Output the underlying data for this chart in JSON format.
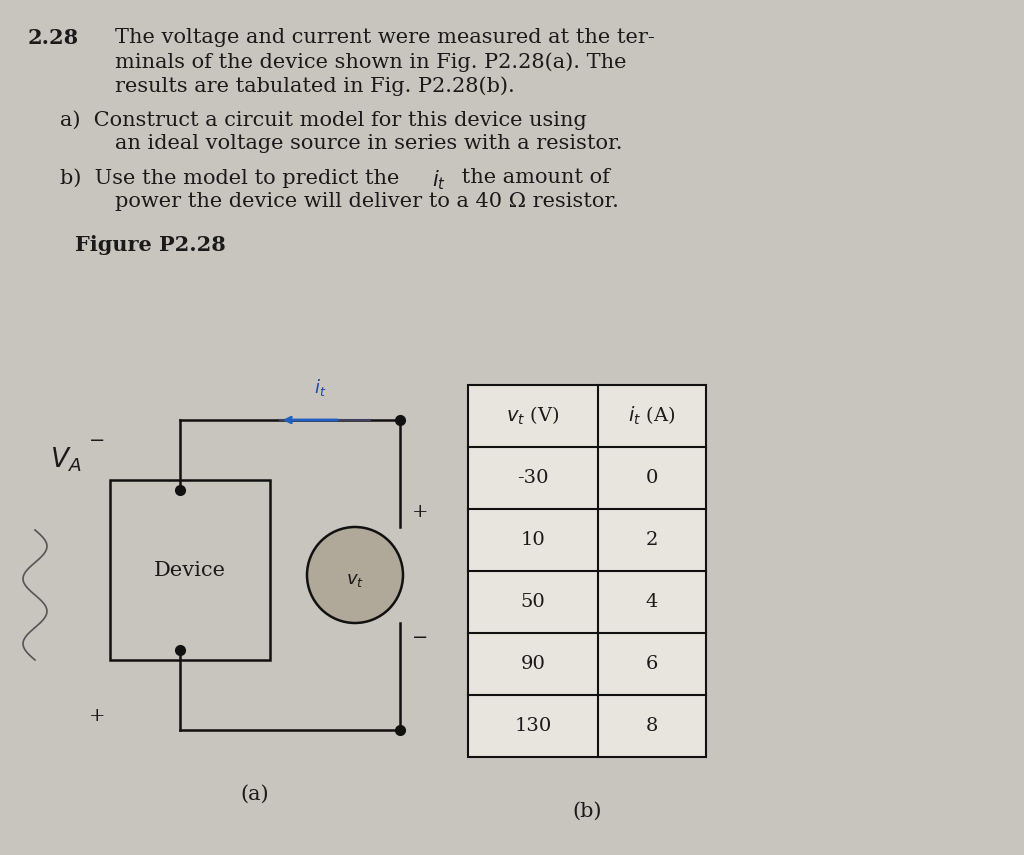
{
  "background_color": "#c8c4be",
  "text_color": "#1a1a1a",
  "problem_number": "2.28",
  "figure_label": "Figure P2.28",
  "table_data": [
    [
      -30,
      0
    ],
    [
      10,
      2
    ],
    [
      50,
      4
    ],
    [
      90,
      6
    ],
    [
      130,
      8
    ]
  ],
  "label_a": "(a)",
  "label_b": "(b)",
  "device_label": "Device",
  "fs_problem": 15,
  "fs_table": 14,
  "fs_label": 14,
  "lw_circuit": 1.8,
  "dot_size": 7,
  "circle_color": "#b0a898",
  "table_bg": "#e8e4de",
  "wire_color": "#111111",
  "arrow_color": "#2060c0"
}
